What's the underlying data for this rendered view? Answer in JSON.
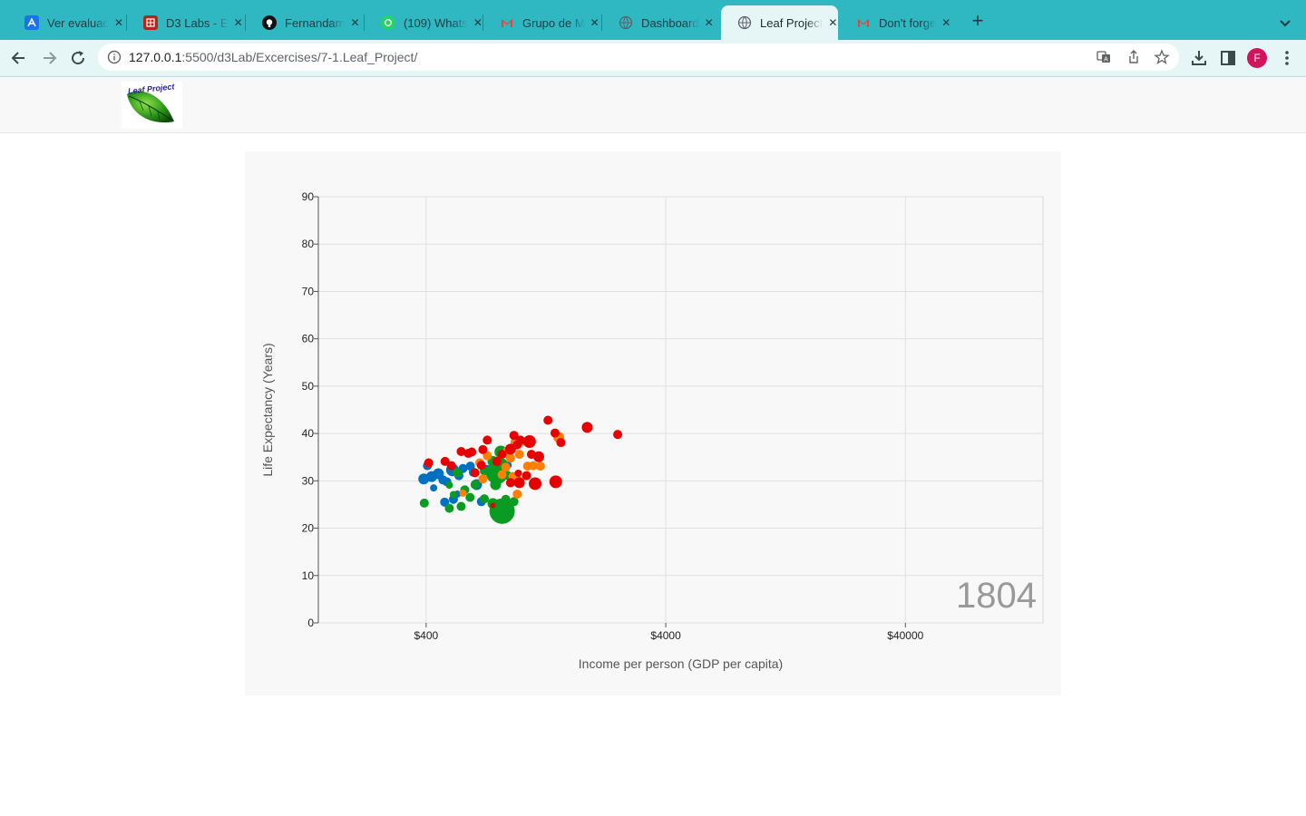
{
  "browser": {
    "tabs": [
      {
        "title": "Ver evaluac",
        "favicon": "blue-a-icon",
        "color": "#1a73e8",
        "active": false
      },
      {
        "title": "D3 Labs - E",
        "favicon": "unsl-icon",
        "color": "#b3261e",
        "active": false
      },
      {
        "title": "Fernandam",
        "favicon": "github-icon",
        "color": "#111111",
        "active": false
      },
      {
        "title": "(109) Whats",
        "favicon": "whatsapp-icon",
        "color": "#25d366",
        "active": false
      },
      {
        "title": "Grupo de M",
        "favicon": "gmail-icon",
        "color": "#ea4335",
        "active": false
      },
      {
        "title": "Dashboard",
        "favicon": "globe-icon",
        "color": "#5f6368",
        "active": false
      },
      {
        "title": "Leaf Project",
        "favicon": "globe-icon",
        "color": "#5f6368",
        "active": true
      },
      {
        "title": "Don't forge",
        "favicon": "gmail-icon",
        "color": "#ea4335",
        "active": false
      }
    ],
    "address": {
      "host": "127.0.0.1",
      "rest": ":5500/d3Lab/Excercises/7-1.Leaf_Project/"
    },
    "profile_initial": "F",
    "theme_color": "#2fb7c2"
  },
  "page": {
    "logo_text": "Leaf Project"
  },
  "chart_data": {
    "type": "scatter",
    "xlabel": "Income per person (GDP per capita)",
    "ylabel": "Life Expectancy (Years)",
    "xscale": "log",
    "xlim": [
      142,
      150000
    ],
    "ylim": [
      0,
      90
    ],
    "xticks": [
      400,
      4000,
      40000
    ],
    "xtick_labels": [
      "$400",
      "$4000",
      "$40000"
    ],
    "yticks": [
      0,
      10,
      20,
      30,
      40,
      50,
      60,
      70,
      80,
      90
    ],
    "year_label": "1804",
    "grid": true,
    "continent_colors": {
      "asia": "#e60000",
      "europe": "#ff7f00",
      "africa": "#0a9b22",
      "americas": "#0070c0"
    },
    "series": [
      {
        "key": "americas",
        "points": [
          {
            "x": 391,
            "y": 30.4,
            "r": 6
          },
          {
            "x": 422,
            "y": 30.9,
            "r": 6
          },
          {
            "x": 450,
            "y": 31.5,
            "r": 6
          },
          {
            "x": 470,
            "y": 30.2,
            "r": 5
          },
          {
            "x": 488,
            "y": 29.8,
            "r": 5
          },
          {
            "x": 515,
            "y": 32.3,
            "r": 7
          },
          {
            "x": 405,
            "y": 33.2,
            "r": 5
          },
          {
            "x": 548,
            "y": 31.1,
            "r": 5
          },
          {
            "x": 570,
            "y": 32.6,
            "r": 5
          },
          {
            "x": 612,
            "y": 33.1,
            "r": 5
          },
          {
            "x": 650,
            "y": 29.2,
            "r": 6
          },
          {
            "x": 630,
            "y": 31.8,
            "r": 5
          },
          {
            "x": 720,
            "y": 32.4,
            "r": 5
          },
          {
            "x": 765,
            "y": 31.1,
            "r": 6
          },
          {
            "x": 760,
            "y": 34.2,
            "r": 5
          },
          {
            "x": 680,
            "y": 25.6,
            "r": 5
          },
          {
            "x": 478,
            "y": 25.5,
            "r": 5
          },
          {
            "x": 520,
            "y": 26.1,
            "r": 5
          },
          {
            "x": 880,
            "y": 33.3,
            "r": 4
          },
          {
            "x": 540,
            "y": 27.2,
            "r": 4
          },
          {
            "x": 430,
            "y": 28.5,
            "r": 4
          }
        ]
      },
      {
        "key": "africa",
        "points": [
          {
            "x": 393,
            "y": 25.3,
            "r": 5
          },
          {
            "x": 500,
            "y": 24.2,
            "r": 5
          },
          {
            "x": 560,
            "y": 24.6,
            "r": 5
          },
          {
            "x": 580,
            "y": 28.1,
            "r": 5
          },
          {
            "x": 610,
            "y": 26.5,
            "r": 5
          },
          {
            "x": 700,
            "y": 26.2,
            "r": 5
          },
          {
            "x": 760,
            "y": 25.2,
            "r": 6
          },
          {
            "x": 830,
            "y": 23.6,
            "r": 14
          },
          {
            "x": 860,
            "y": 26.1,
            "r": 5
          },
          {
            "x": 930,
            "y": 25.6,
            "r": 5
          },
          {
            "x": 780,
            "y": 29.2,
            "r": 6
          },
          {
            "x": 790,
            "y": 31.6,
            "r": 12
          },
          {
            "x": 830,
            "y": 33.6,
            "r": 6
          },
          {
            "x": 820,
            "y": 36.1,
            "r": 7
          },
          {
            "x": 760,
            "y": 34.1,
            "r": 6
          },
          {
            "x": 700,
            "y": 32.1,
            "r": 5
          },
          {
            "x": 540,
            "y": 31.7,
            "r": 5
          },
          {
            "x": 520,
            "y": 27.1,
            "r": 4
          },
          {
            "x": 640,
            "y": 29.2,
            "r": 5
          },
          {
            "x": 870,
            "y": 31.2,
            "r": 5
          },
          {
            "x": 500,
            "y": 29.1,
            "r": 4
          }
        ]
      },
      {
        "key": "europe",
        "points": [
          {
            "x": 870,
            "y": 36.2,
            "r": 5
          },
          {
            "x": 900,
            "y": 34.8,
            "r": 5
          },
          {
            "x": 940,
            "y": 38.2,
            "r": 5
          },
          {
            "x": 980,
            "y": 35.6,
            "r": 5
          },
          {
            "x": 1060,
            "y": 33.1,
            "r": 5
          },
          {
            "x": 1120,
            "y": 33.2,
            "r": 5
          },
          {
            "x": 1200,
            "y": 33.1,
            "r": 5
          },
          {
            "x": 960,
            "y": 27.2,
            "r": 5
          },
          {
            "x": 960,
            "y": 30.4,
            "r": 5
          },
          {
            "x": 920,
            "y": 30.9,
            "r": 5
          },
          {
            "x": 860,
            "y": 32.9,
            "r": 5
          },
          {
            "x": 830,
            "y": 31.3,
            "r": 5
          },
          {
            "x": 690,
            "y": 30.4,
            "r": 5
          },
          {
            "x": 670,
            "y": 33.8,
            "r": 5
          },
          {
            "x": 720,
            "y": 35.3,
            "r": 5
          },
          {
            "x": 1430,
            "y": 39.2,
            "r": 6
          },
          {
            "x": 1010,
            "y": 38.2,
            "r": 4
          },
          {
            "x": 570,
            "y": 27.4,
            "r": 4
          }
        ]
      },
      {
        "key": "asia",
        "points": [
          {
            "x": 410,
            "y": 33.8,
            "r": 5
          },
          {
            "x": 480,
            "y": 34.1,
            "r": 5
          },
          {
            "x": 510,
            "y": 33.2,
            "r": 5
          },
          {
            "x": 560,
            "y": 36.2,
            "r": 5
          },
          {
            "x": 600,
            "y": 35.8,
            "r": 5
          },
          {
            "x": 620,
            "y": 36.1,
            "r": 5
          },
          {
            "x": 690,
            "y": 36.6,
            "r": 5
          },
          {
            "x": 720,
            "y": 38.6,
            "r": 5
          },
          {
            "x": 790,
            "y": 34.1,
            "r": 5
          },
          {
            "x": 830,
            "y": 35.6,
            "r": 5
          },
          {
            "x": 900,
            "y": 36.7,
            "r": 6
          },
          {
            "x": 930,
            "y": 39.6,
            "r": 5
          },
          {
            "x": 960,
            "y": 37.6,
            "r": 5
          },
          {
            "x": 990,
            "y": 38.6,
            "r": 5
          },
          {
            "x": 1080,
            "y": 38.3,
            "r": 7
          },
          {
            "x": 1100,
            "y": 35.6,
            "r": 5
          },
          {
            "x": 1180,
            "y": 35.1,
            "r": 6
          },
          {
            "x": 1290,
            "y": 42.8,
            "r": 5
          },
          {
            "x": 1380,
            "y": 40.1,
            "r": 5
          },
          {
            "x": 1460,
            "y": 38.1,
            "r": 5
          },
          {
            "x": 1880,
            "y": 41.3,
            "r": 6
          },
          {
            "x": 2520,
            "y": 39.8,
            "r": 5
          },
          {
            "x": 1140,
            "y": 29.4,
            "r": 7
          },
          {
            "x": 1390,
            "y": 29.8,
            "r": 7
          },
          {
            "x": 980,
            "y": 29.6,
            "r": 6
          },
          {
            "x": 900,
            "y": 29.6,
            "r": 5
          },
          {
            "x": 680,
            "y": 33.3,
            "r": 5
          },
          {
            "x": 640,
            "y": 31.7,
            "r": 5
          },
          {
            "x": 760,
            "y": 24.8,
            "r": 3
          },
          {
            "x": 970,
            "y": 31.6,
            "r": 4
          },
          {
            "x": 1050,
            "y": 31.1,
            "r": 5
          }
        ]
      }
    ]
  }
}
